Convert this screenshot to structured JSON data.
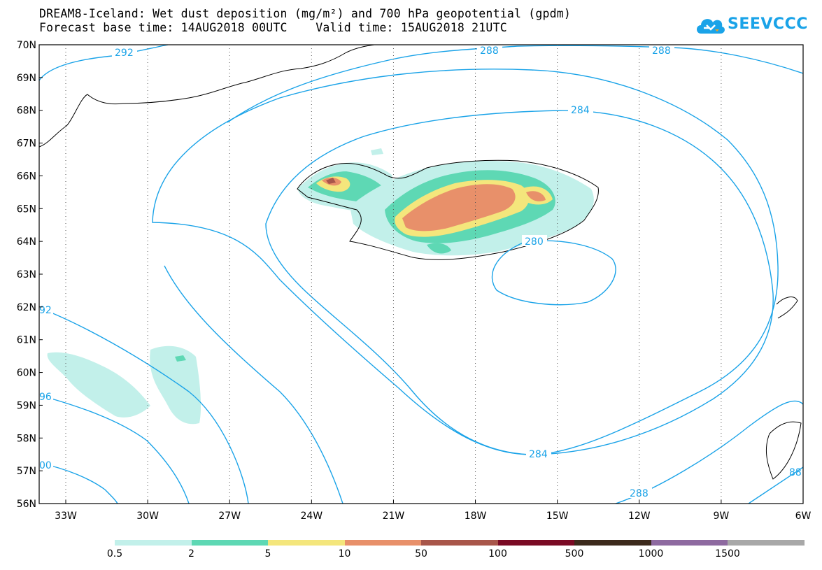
{
  "title": {
    "line1": "DREAM8-Iceland: Wet dust deposition (mg/m²) and 700 hPa geopotential (gpdm)",
    "line2": "Forecast base time: 14AUG2018 00UTC    Valid time: 15AUG2018 21UTC"
  },
  "logo": {
    "text": "SEEVCCC",
    "icon": "cloud-icon",
    "color": "#1aa3e8"
  },
  "map": {
    "lat_labels": [
      "70N",
      "69N",
      "68N",
      "67N",
      "66N",
      "65N",
      "64N",
      "63N",
      "62N",
      "61N",
      "60N",
      "59N",
      "58N",
      "57N",
      "56N"
    ],
    "lon_labels": [
      "33W",
      "30W",
      "27W",
      "24W",
      "21W",
      "18W",
      "15W",
      "12W",
      "9W",
      "6W"
    ],
    "contour_color": "#1aa3e8",
    "contour_labels": [
      "292",
      "288",
      "288",
      "284",
      "280",
      "284",
      "288",
      "92",
      "96",
      "00",
      "88"
    ]
  },
  "colorbar": {
    "labels": [
      "0.5",
      "2",
      "5",
      "10",
      "50",
      "100",
      "500",
      "1000",
      "1500"
    ],
    "colors": [
      "#c2f0ea",
      "#5ed8b4",
      "#f4e67c",
      "#e8906a",
      "#a8564a",
      "#7a0a24",
      "#3c2a1c",
      "#8e6aa0",
      "#a8a8a8"
    ]
  }
}
